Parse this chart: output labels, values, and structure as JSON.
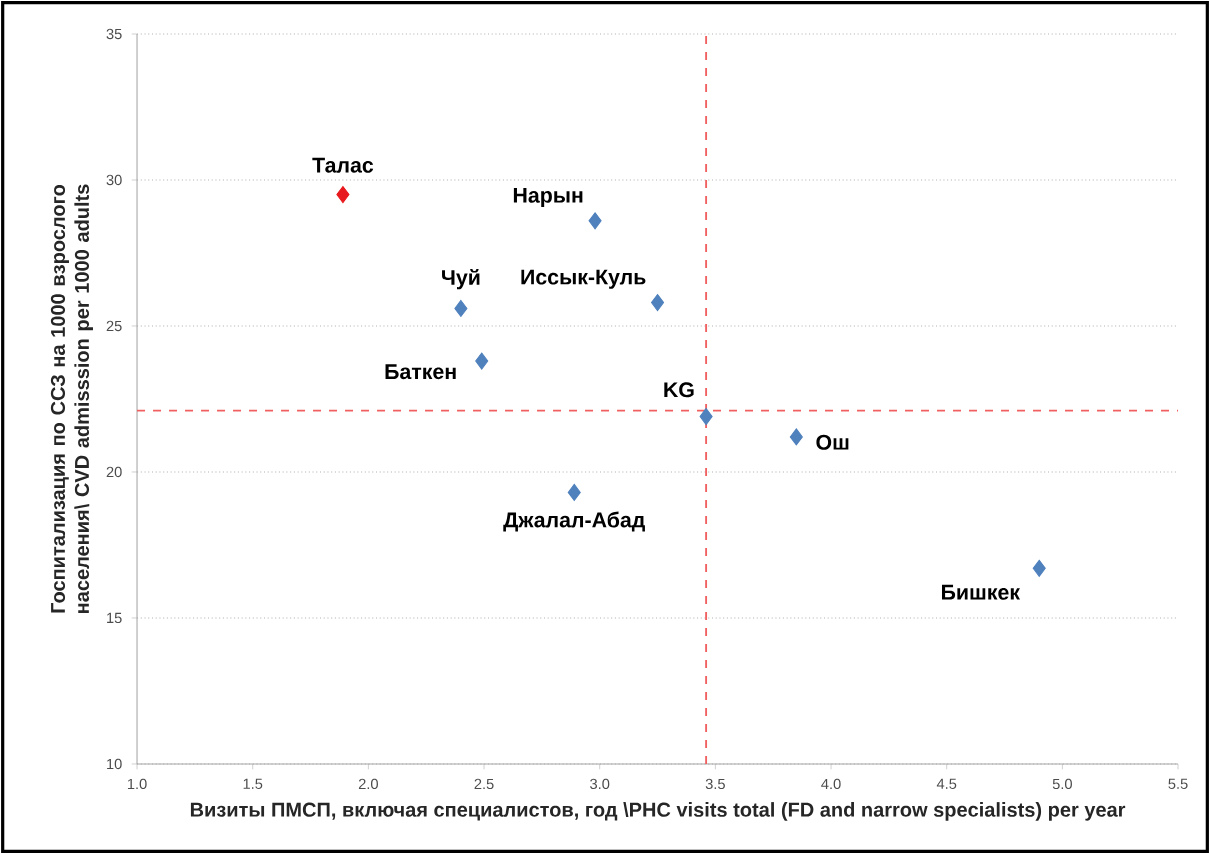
{
  "chart_data": {
    "type": "scatter",
    "xlabel": "Визиты ПМСП, включая специалистов, год \\PHC visits total (FD and narrow specialists) per year",
    "ylabel": "Госпитализация по ССЗ на 1000 взрослого населения\\ CVD admisssion per 1000 adults",
    "x": [
      1.89,
      2.98,
      2.4,
      3.25,
      2.49,
      3.46,
      3.85,
      2.89,
      4.9
    ],
    "values": [
      29.5,
      28.6,
      25.6,
      25.8,
      23.8,
      21.9,
      21.2,
      19.3,
      16.7
    ],
    "colors": [
      "#e8191e",
      "#4f81bd",
      "#4f81bd",
      "#4f81bd",
      "#4f81bd",
      "#4f81bd",
      "#4f81bd",
      "#4f81bd",
      "#4f81bd"
    ],
    "marker": "diamond",
    "xlim": [
      1.0,
      5.5
    ],
    "ylim": [
      10,
      35
    ],
    "xticks": [
      {
        "value": 1.0,
        "label": "1.0"
      },
      {
        "value": 1.5,
        "label": "1.5"
      },
      {
        "value": 2.0,
        "label": "2.0"
      },
      {
        "value": 2.5,
        "label": "2.5"
      },
      {
        "value": 3.0,
        "label": "3.0"
      },
      {
        "value": 3.5,
        "label": "3.5"
      },
      {
        "value": 4.0,
        "label": "4.0"
      },
      {
        "value": 4.5,
        "label": "4.5"
      },
      {
        "value": 5.0,
        "label": "5.0"
      },
      {
        "value": 5.5,
        "label": "5.5"
      }
    ],
    "yticks": [
      10,
      15,
      20,
      25,
      30,
      35
    ],
    "grid": "y",
    "ref_lines": [
      {
        "axis": "x",
        "value": 3.46,
        "color": "#f06060",
        "line_style": "dashed"
      },
      {
        "axis": "y",
        "value": 22.1,
        "color": "#f06060",
        "line_style": "dashed"
      }
    ],
    "annotations": [
      {
        "text": "Талас",
        "x": 1.89,
        "y": 29.5
      },
      {
        "text": "Нарын",
        "x": 2.98,
        "y": 28.6
      },
      {
        "text": "Чуй",
        "x": 2.4,
        "y": 25.6
      },
      {
        "text": "Иссык-Куль",
        "x": 3.25,
        "y": 25.8
      },
      {
        "text": "Баткен",
        "x": 2.49,
        "y": 23.8
      },
      {
        "text": "KG",
        "x": 3.46,
        "y": 21.9
      },
      {
        "text": "Ош",
        "x": 3.85,
        "y": 21.2
      },
      {
        "text": "Джалал-Абад",
        "x": 2.89,
        "y": 19.3
      },
      {
        "text": "Бишкек",
        "x": 4.9,
        "y": 16.7
      }
    ]
  }
}
